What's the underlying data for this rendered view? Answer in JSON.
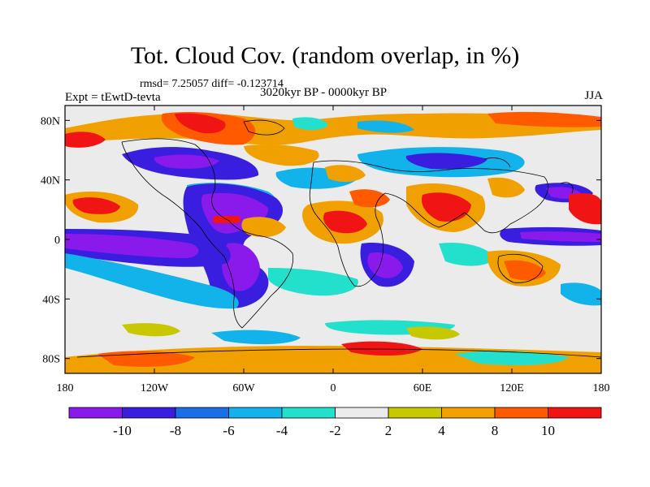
{
  "title": "Tot. Cloud Cov. (random overlap, in %)",
  "stats": "rmsd= 7.25057 diff= -0.123714",
  "experiment": "Expt = tEwtD-tevta",
  "period": "3020kyr BP - 0000kyr BP",
  "season": "JJA",
  "map": {
    "lat_labels": [
      "80N",
      "40N",
      "0",
      "40S",
      "80S"
    ],
    "lat_values": [
      80,
      40,
      0,
      -40,
      -80
    ],
    "lon_labels": [
      "180",
      "120W",
      "60W",
      "0",
      "60E",
      "120E",
      "180"
    ],
    "lon_values": [
      -180,
      -120,
      -60,
      0,
      60,
      120,
      180
    ],
    "lat_range": [
      -90,
      90
    ],
    "lon_range": [
      -180,
      180
    ],
    "background_color": "#ebebeb"
  },
  "colorbar": {
    "labels": [
      "-10",
      "-8",
      "-6",
      "-4",
      "-2",
      "2",
      "4",
      "8",
      "10"
    ],
    "colors": [
      "#8a1aec",
      "#3a1ee0",
      "#1a6ee8",
      "#12b2ea",
      "#22e0cc",
      "#ebebeb",
      "#c8c800",
      "#f0a000",
      "#ff5a00",
      "#f01414"
    ]
  }
}
